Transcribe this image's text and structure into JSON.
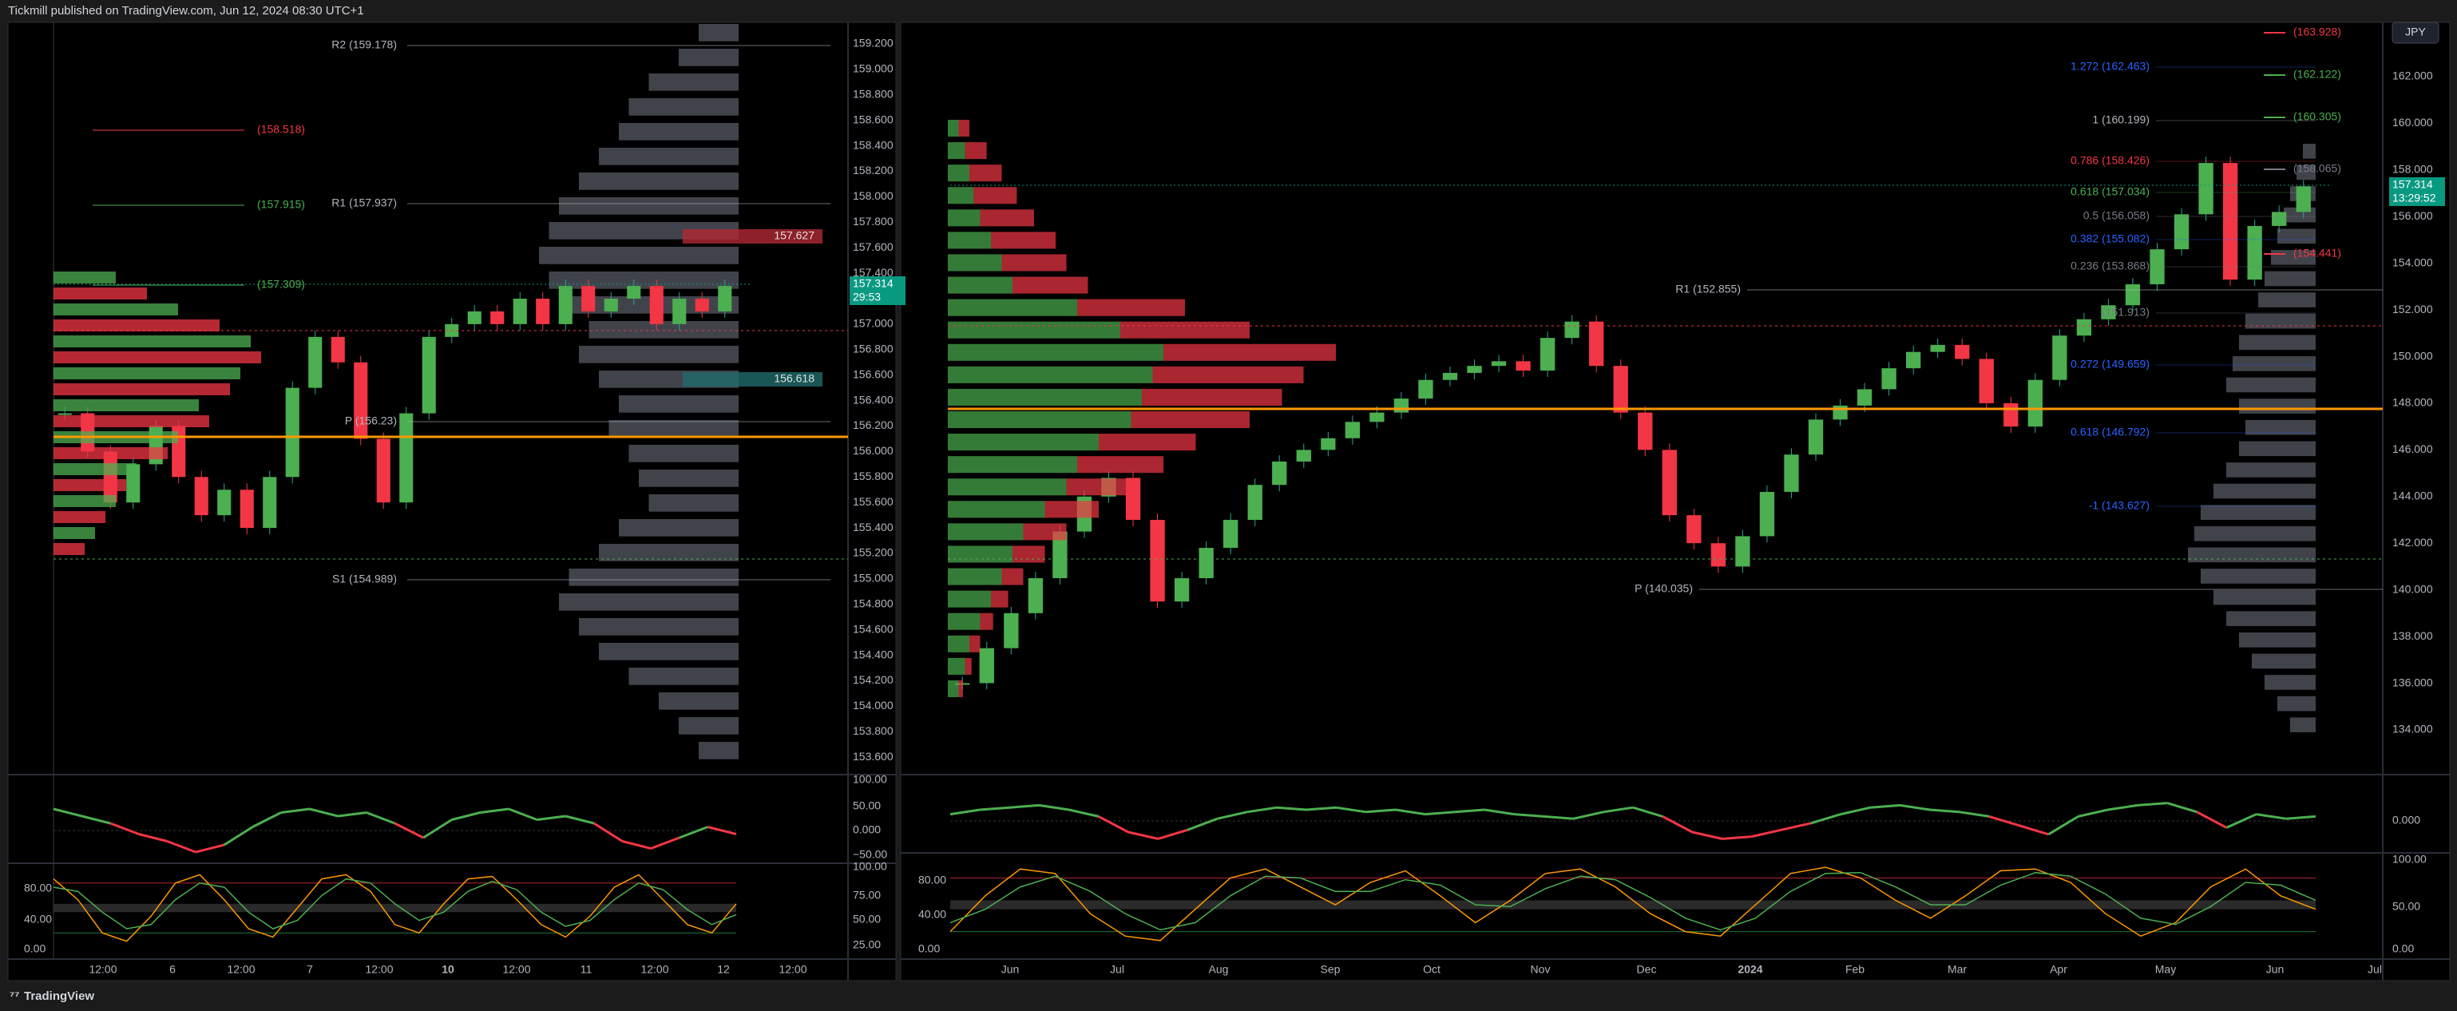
{
  "header": {
    "title": "Tickmill published on TradingView.com, Jun 12, 2024 08:30 UTC+1"
  },
  "footer": {
    "brand": "TradingView"
  },
  "left_chart": {
    "price_axis": [
      "159.200",
      "159.000",
      "158.800",
      "158.600",
      "158.400",
      "158.200",
      "158.000",
      "157.800",
      "157.600",
      "157.400",
      "157.200",
      "157.000",
      "156.800",
      "156.600",
      "156.400",
      "156.200",
      "156.000",
      "155.800",
      "155.600",
      "155.400",
      "155.200",
      "155.000",
      "154.800",
      "154.600",
      "154.400",
      "154.200",
      "154.000",
      "153.800",
      "153.600"
    ],
    "time_axis": [
      "12:00",
      "6",
      "12:00",
      "7",
      "12:00",
      "10",
      "12:00",
      "11",
      "12:00",
      "12",
      "12:00"
    ],
    "levels": [
      {
        "label": "R2 (159.178)",
        "color": "#b2b5be"
      },
      {
        "label": "R1 (157.937)",
        "color": "#b2b5be"
      },
      {
        "label": "P (156.23)",
        "color": "#b2b5be"
      },
      {
        "label": "S1 (154.989)",
        "color": "#b2b5be"
      },
      {
        "label": "(158.518)",
        "color": "#f23645"
      },
      {
        "label": "(157.915)",
        "color": "#4caf50"
      },
      {
        "label": "(157.309)",
        "color": "#4caf50"
      }
    ],
    "boxes": [
      {
        "label": "157.627",
        "color": "#b22833"
      },
      {
        "label": "156.618",
        "color": "#1f6b6b"
      }
    ],
    "price_tag": {
      "price": "157.314",
      "timer": "29:53"
    },
    "osc1_axis": [
      "100.00",
      "50.00",
      "0.000",
      "−50.00"
    ],
    "osc2_axis": [
      "100.00",
      "75.00",
      "50.00",
      "25.00"
    ],
    "osc2_inner": [
      "80.00",
      "40.00",
      "0.00"
    ],
    "close": [
      156.3,
      156.0,
      155.6,
      155.9,
      156.2,
      155.8,
      155.5,
      155.7,
      155.4,
      155.8,
      156.5,
      156.9,
      156.7,
      156.1,
      155.6,
      156.3,
      156.9,
      157.0,
      157.1,
      157.0,
      157.2,
      157.0,
      157.3,
      157.1,
      157.2,
      157.3,
      157.0,
      157.2,
      157.1,
      157.3
    ],
    "profile_left": [
      30,
      45,
      60,
      80,
      95,
      100,
      90,
      85,
      70,
      75,
      60,
      55,
      40,
      35,
      30,
      25,
      20,
      15
    ],
    "profile_right": [
      20,
      30,
      45,
      55,
      60,
      70,
      80,
      90,
      95,
      100,
      95,
      85,
      75,
      80,
      70,
      60,
      65,
      55,
      50,
      45,
      60,
      70,
      85,
      90,
      80,
      70,
      55,
      40,
      30,
      20
    ],
    "osc1": [
      0.6,
      0.4,
      0.2,
      -0.1,
      -0.3,
      -0.6,
      -0.4,
      0.1,
      0.5,
      0.6,
      0.4,
      0.5,
      0.2,
      -0.2,
      0.3,
      0.5,
      0.6,
      0.3,
      0.4,
      0.2,
      -0.3,
      -0.5,
      -0.2,
      0.1,
      -0.1
    ],
    "stoch_k": [
      85,
      60,
      20,
      10,
      40,
      80,
      90,
      60,
      25,
      15,
      50,
      85,
      90,
      70,
      30,
      20,
      55,
      85,
      88,
      60,
      30,
      15,
      40,
      75,
      90,
      60,
      30,
      20,
      55
    ],
    "stoch_d": [
      75,
      70,
      45,
      25,
      30,
      60,
      80,
      75,
      45,
      25,
      35,
      65,
      85,
      80,
      55,
      35,
      45,
      70,
      82,
      72,
      45,
      28,
      35,
      60,
      80,
      72,
      48,
      30,
      42
    ]
  },
  "right_chart": {
    "price_axis": [
      "162.000",
      "160.000",
      "158.000",
      "156.000",
      "154.000",
      "152.000",
      "150.000",
      "148.000",
      "146.000",
      "144.000",
      "142.000",
      "140.000",
      "138.000",
      "136.000",
      "134.000"
    ],
    "time_axis": [
      "Jun",
      "Jul",
      "Aug",
      "Sep",
      "Oct",
      "Nov",
      "Dec",
      "2024",
      "Feb",
      "Mar",
      "Apr",
      "May",
      "Jun",
      "Jul"
    ],
    "fib_levels": [
      {
        "label": "1.272 (162.463)",
        "color": "#2962ff"
      },
      {
        "label": "1 (160.199)",
        "color": "#b2b5be"
      },
      {
        "label": "0.786 (158.426)",
        "color": "#f23645"
      },
      {
        "label": "0.618 (157.034)",
        "color": "#4caf50"
      },
      {
        "label": "0.5 (156.058)",
        "color": "#787b86"
      },
      {
        "label": "0.382 (155.082)",
        "color": "#2962ff"
      },
      {
        "label": "0.236 (153.868)",
        "color": "#787b86"
      },
      {
        "label": "(151.913)",
        "color": "#787b86"
      },
      {
        "label": "0.272 (149.659)",
        "color": "#2962ff"
      },
      {
        "label": "0.618 (146.792)",
        "color": "#2962ff"
      },
      {
        "label": "-1 (143.627)",
        "color": "#2962ff"
      }
    ],
    "pivots": [
      {
        "label": "R1 (152.855)",
        "color": "#b2b5be"
      },
      {
        "label": "P (140.035)",
        "color": "#b2b5be"
      }
    ],
    "side_levels": [
      {
        "label": "(163.928)",
        "color": "#f23645"
      },
      {
        "label": "(162.122)",
        "color": "#4caf50"
      },
      {
        "label": "(160.305)",
        "color": "#4caf50"
      },
      {
        "label": "(158.065)",
        "color": "#787b86"
      },
      {
        "label": "(154.441)",
        "color": "#f23645"
      }
    ],
    "currency": "JPY",
    "price_tag": {
      "price": "157.314",
      "timer": "13:29:52"
    },
    "osc1_axis": [
      "0.000"
    ],
    "osc2_axis": [
      "100.00",
      "50.00",
      "0.00"
    ],
    "osc2_inner": [
      "80.00",
      "40.00",
      "0.00"
    ],
    "close": [
      136.0,
      137.5,
      139.0,
      140.5,
      142.5,
      144.0,
      144.8,
      143.0,
      139.5,
      140.5,
      141.8,
      143.0,
      144.5,
      145.5,
      146.0,
      146.5,
      147.2,
      147.6,
      148.2,
      149.0,
      149.3,
      149.6,
      149.8,
      149.4,
      150.8,
      151.5,
      149.6,
      147.6,
      146.0,
      143.2,
      142.0,
      141.0,
      142.3,
      144.2,
      145.8,
      147.3,
      147.9,
      148.6,
      149.5,
      150.2,
      150.5,
      149.9,
      148.0,
      147.0,
      149.0,
      150.9,
      151.6,
      152.2,
      153.1,
      154.6,
      156.1,
      158.3,
      153.3,
      155.6,
      156.2,
      157.3
    ],
    "profile_buy": [
      5,
      8,
      10,
      12,
      15,
      20,
      25,
      30,
      60,
      80,
      100,
      95,
      90,
      85,
      70,
      60,
      55,
      45,
      35,
      30,
      25,
      20,
      15,
      10,
      8,
      5
    ],
    "profile_sell": [
      5,
      10,
      15,
      20,
      25,
      30,
      30,
      35,
      50,
      60,
      80,
      70,
      65,
      55,
      45,
      40,
      30,
      25,
      20,
      15,
      10,
      8,
      6,
      5,
      3,
      2
    ],
    "profile_right": [
      10,
      15,
      20,
      25,
      30,
      35,
      40,
      45,
      55,
      60,
      65,
      70,
      60,
      55,
      60,
      70,
      80,
      90,
      95,
      100,
      90,
      80,
      70,
      60,
      50,
      40,
      30,
      20
    ],
    "osc1": [
      0.3,
      0.5,
      0.6,
      0.7,
      0.5,
      0.2,
      -0.5,
      -0.8,
      -0.4,
      0.1,
      0.4,
      0.6,
      0.5,
      0.6,
      0.4,
      0.5,
      0.3,
      0.4,
      0.5,
      0.3,
      0.2,
      0.1,
      0.4,
      0.6,
      0.2,
      -0.5,
      -0.8,
      -0.7,
      -0.4,
      -0.1,
      0.3,
      0.6,
      0.7,
      0.5,
      0.4,
      0.2,
      -0.2,
      -0.6,
      0.2,
      0.5,
      0.7,
      0.8,
      0.4,
      -0.3,
      0.3,
      0.1,
      0.2
    ],
    "stoch_k": [
      20,
      60,
      90,
      85,
      40,
      15,
      10,
      45,
      80,
      90,
      70,
      50,
      75,
      88,
      60,
      30,
      55,
      85,
      90,
      70,
      40,
      20,
      15,
      50,
      85,
      92,
      80,
      55,
      35,
      60,
      88,
      90,
      75,
      40,
      15,
      30,
      70,
      90,
      60,
      45
    ],
    "stoch_d": [
      30,
      45,
      70,
      82,
      65,
      40,
      22,
      30,
      60,
      82,
      80,
      65,
      65,
      78,
      72,
      50,
      48,
      68,
      82,
      78,
      58,
      35,
      22,
      35,
      65,
      85,
      86,
      70,
      50,
      50,
      72,
      86,
      82,
      62,
      35,
      28,
      48,
      75,
      72,
      55
    ]
  }
}
